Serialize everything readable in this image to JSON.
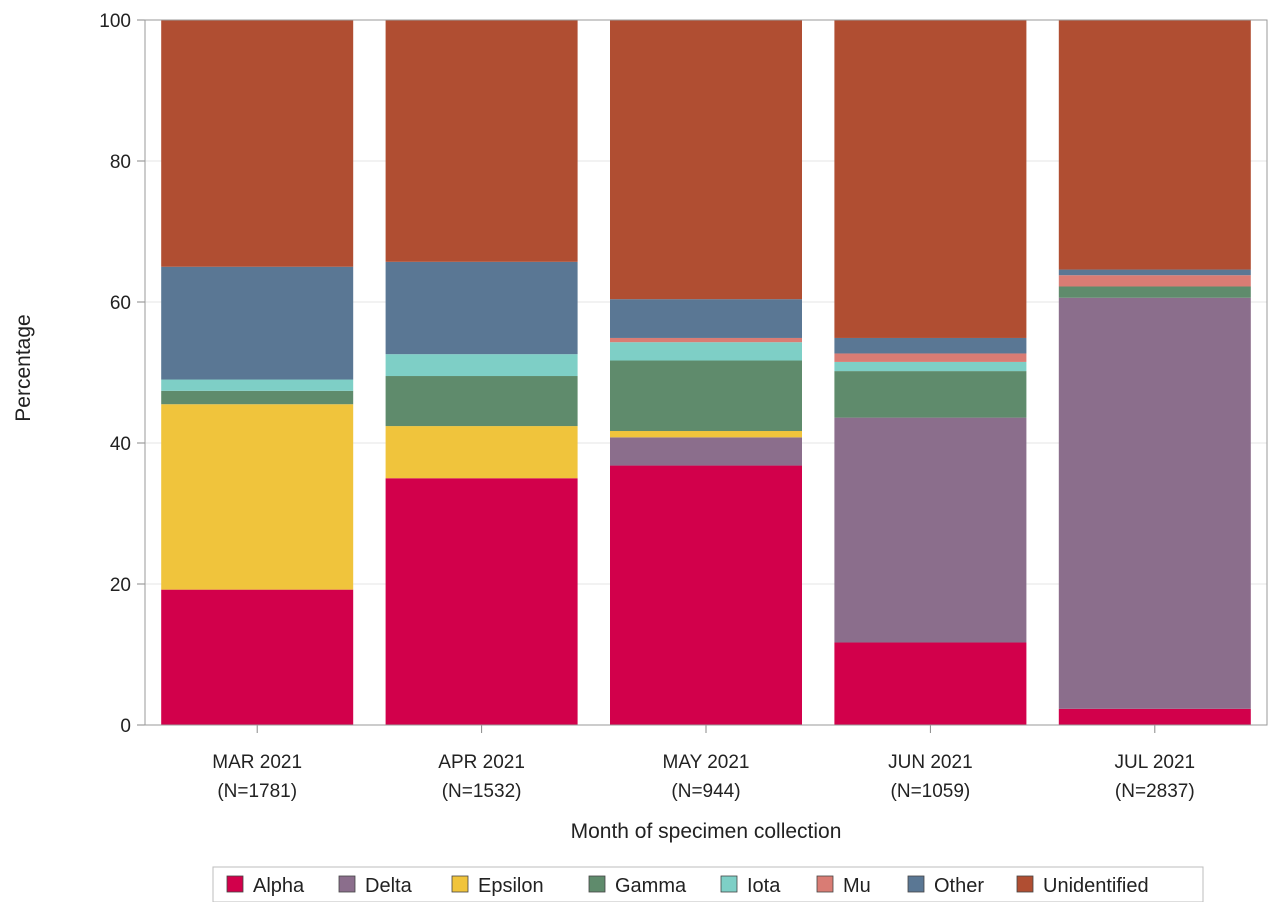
{
  "chart_data": {
    "type": "bar",
    "stacked": true,
    "title": "",
    "xlabel": "Month of specimen collection",
    "ylabel": "Percentage",
    "ylim": [
      0,
      100
    ],
    "yticks": [
      0,
      20,
      40,
      60,
      80,
      100
    ],
    "grid": true,
    "legend_position": "bottom",
    "categories": [
      {
        "month": "MAR 2021",
        "n": "(N=1781)"
      },
      {
        "month": "APR 2021",
        "n": "(N=1532)"
      },
      {
        "month": "MAY 2021",
        "n": "(N=944)"
      },
      {
        "month": "JUN 2021",
        "n": "(N=1059)"
      },
      {
        "month": "JUL 2021",
        "n": "(N=2837)"
      }
    ],
    "series": [
      {
        "name": "Alpha",
        "color": "#d2004b",
        "values": [
          19.2,
          35.0,
          36.8,
          11.7,
          2.3
        ]
      },
      {
        "name": "Delta",
        "color": "#8b6e8c",
        "values": [
          0.0,
          0.0,
          4.0,
          31.9,
          58.3
        ]
      },
      {
        "name": "Epsilon",
        "color": "#f0c43c",
        "values": [
          26.3,
          7.4,
          0.9,
          0.0,
          0.0
        ]
      },
      {
        "name": "Gamma",
        "color": "#5f8b6c",
        "values": [
          1.9,
          7.1,
          10.0,
          6.6,
          1.6
        ]
      },
      {
        "name": "Iota",
        "color": "#7ecfc6",
        "values": [
          1.6,
          3.1,
          2.6,
          1.3,
          0.0
        ]
      },
      {
        "name": "Mu",
        "color": "#d97c74",
        "values": [
          0.0,
          0.0,
          0.6,
          1.2,
          1.6
        ]
      },
      {
        "name": "Other",
        "color": "#5a7794",
        "values": [
          16.0,
          13.1,
          5.5,
          2.2,
          0.8
        ]
      },
      {
        "name": "Unidentified",
        "color": "#b04e32",
        "values": [
          35.0,
          34.3,
          39.6,
          45.1,
          35.4
        ]
      }
    ]
  }
}
